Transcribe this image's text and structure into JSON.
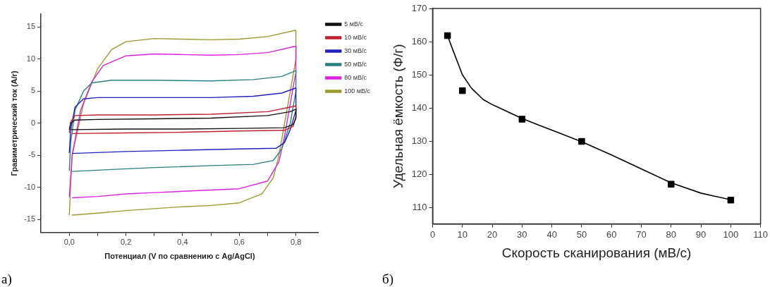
{
  "chart_data": [
    {
      "type": "line",
      "xlabel": "Потенциал (V по сравнению с Ag/AgCl)",
      "ylabel": "Гравиметрический ток (А/г)",
      "annotations": [
        "а)"
      ],
      "xlim": [
        -0.1,
        0.88
      ],
      "xticks": [
        {
          "value": 0,
          "label": "0,0"
        },
        {
          "value": 0.1,
          "label": null
        },
        {
          "value": 0.2,
          "label": "0,2"
        },
        {
          "value": 0.3,
          "label": null
        },
        {
          "value": 0.4,
          "label": "0,4"
        },
        {
          "value": 0.5,
          "label": null
        },
        {
          "value": 0.6,
          "label": "0,6"
        },
        {
          "value": 0.7,
          "label": null
        },
        {
          "value": 0.8,
          "label": "0,8"
        }
      ],
      "ylim": [
        -17,
        17
      ],
      "yticks": [
        -15,
        -10,
        -5,
        0,
        5,
        10,
        15
      ],
      "grid": false,
      "legend": "top right",
      "marker": "none",
      "line_style": "solid",
      "series": [
        {
          "name": "5 мВ/с",
          "color": "#111111",
          "x": [
            0,
            0.005,
            0.02,
            0.1,
            0.3,
            0.5,
            0.7,
            0.78,
            0.8
          ],
          "values": [
            -1.0,
            0,
            0.5,
            0.6,
            0.7,
            0.8,
            1.2,
            1.8,
            2.2
          ]
        },
        {
          "color": "#111111",
          "x": [
            0.005,
            0.2,
            0.4,
            0.6,
            0.76,
            0.79,
            0.8,
            0.8
          ],
          "values": [
            -1.0,
            -0.9,
            -0.9,
            -0.8,
            -0.7,
            -0.2,
            0.8,
            2.2
          ]
        },
        {
          "name": "10 мВ/с",
          "color": "#c02030",
          "x": [
            0,
            0.005,
            0.02,
            0.1,
            0.3,
            0.5,
            0.7,
            0.8
          ],
          "values": [
            -1.5,
            0.2,
            1.2,
            1.3,
            1.3,
            1.4,
            1.8,
            2.7
          ]
        },
        {
          "color": "#c02030",
          "x": [
            0.01,
            0.2,
            0.4,
            0.6,
            0.76,
            0.79,
            0.8,
            0.8
          ],
          "values": [
            -1.6,
            -1.5,
            -1.4,
            -1.2,
            -1.1,
            -0.5,
            1,
            2.7
          ]
        },
        {
          "name": "30 мВ/с",
          "color": "#2020c0",
          "x": [
            0,
            0.005,
            0.02,
            0.05,
            0.1,
            0.3,
            0.5,
            0.65,
            0.75,
            0.8
          ],
          "values": [
            -4.6,
            -1,
            2.5,
            3.8,
            4.0,
            4.0,
            4.0,
            4.2,
            4.7,
            5.5
          ]
        },
        {
          "color": "#2020c0",
          "x": [
            0.01,
            0.2,
            0.4,
            0.6,
            0.73,
            0.76,
            0.78,
            0.8,
            0.8
          ],
          "values": [
            -4.7,
            -4.4,
            -4.2,
            -4.0,
            -3.9,
            -3,
            -1,
            2,
            5.5
          ]
        },
        {
          "name": "50 мВ/с",
          "color": "#2a8080",
          "x": [
            0,
            0.005,
            0.02,
            0.05,
            0.08,
            0.15,
            0.3,
            0.5,
            0.65,
            0.75,
            0.8
          ],
          "values": [
            -7.4,
            -3,
            2,
            5,
            6.3,
            6.7,
            6.7,
            6.6,
            6.8,
            7.3,
            8.2
          ]
        },
        {
          "color": "#2a8080",
          "x": [
            0.01,
            0.15,
            0.3,
            0.5,
            0.65,
            0.72,
            0.75,
            0.78,
            0.8,
            0.8
          ],
          "values": [
            -7.5,
            -7.2,
            -6.9,
            -6.6,
            -6.4,
            -5.8,
            -4,
            0,
            5,
            8.2
          ]
        },
        {
          "name": "80 мВ/с",
          "color": "#e020e0",
          "x": [
            0,
            0.01,
            0.04,
            0.08,
            0.12,
            0.2,
            0.3,
            0.4,
            0.5,
            0.6,
            0.7,
            0.8
          ],
          "values": [
            -11.5,
            -5,
            2,
            6.5,
            9,
            10.5,
            10.8,
            10.7,
            10.6,
            10.7,
            11,
            12
          ]
        },
        {
          "color": "#e020e0",
          "x": [
            0.01,
            0.1,
            0.2,
            0.3,
            0.4,
            0.5,
            0.6,
            0.7,
            0.74,
            0.76,
            0.78,
            0.8,
            0.8
          ],
          "values": [
            -11.6,
            -11.4,
            -11,
            -10.8,
            -10.6,
            -10.4,
            -10.2,
            -9,
            -6,
            -2,
            3,
            8,
            12
          ]
        },
        {
          "name": "100 мВ/с",
          "color": "#9c9a2c",
          "x": [
            0,
            0.01,
            0.05,
            0.1,
            0.15,
            0.2,
            0.3,
            0.4,
            0.5,
            0.6,
            0.7,
            0.8
          ],
          "values": [
            -14.3,
            -5,
            3,
            8.5,
            11.5,
            12.7,
            13.2,
            13.1,
            13.0,
            13.1,
            13.5,
            14.5
          ]
        },
        {
          "color": "#9c9a2c",
          "x": [
            0.01,
            0.1,
            0.2,
            0.3,
            0.4,
            0.5,
            0.6,
            0.68,
            0.72,
            0.74,
            0.76,
            0.78,
            0.8,
            0.8
          ],
          "values": [
            -14.3,
            -14.0,
            -13.6,
            -13.3,
            -13.0,
            -12.8,
            -12.4,
            -11,
            -8.5,
            -5,
            0,
            5,
            10,
            14.5
          ]
        }
      ]
    },
    {
      "type": "scatter",
      "xlabel": "Скорость сканирования (мВ/с)",
      "ylabel": "Удельная ёмкость (Ф/г)",
      "annotations": [
        "б)"
      ],
      "xlim": [
        0,
        110
      ],
      "xticks": [
        0,
        10,
        20,
        30,
        40,
        50,
        60,
        70,
        80,
        90,
        100,
        110
      ],
      "ylim": [
        105,
        170
      ],
      "yticks": [
        110,
        120,
        130,
        140,
        150,
        160,
        170
      ],
      "grid": false,
      "marker": "square",
      "series": [
        {
          "color": "#000000",
          "x": [
            5,
            10,
            30,
            50,
            80,
            100
          ],
          "values": [
            161.8,
            145.2,
            136.6,
            129.9,
            117,
            112.2
          ]
        },
        {
          "type": "line",
          "marker": "none",
          "color": "#000000",
          "x": [
            5,
            7,
            10,
            13,
            17,
            20,
            30,
            40,
            50,
            60,
            70,
            80,
            90,
            100
          ],
          "values": [
            161.8,
            157,
            150,
            146,
            142.5,
            141,
            136.8,
            133.3,
            129.8,
            125.8,
            121.6,
            117.4,
            114.3,
            112.3
          ]
        }
      ]
    }
  ]
}
